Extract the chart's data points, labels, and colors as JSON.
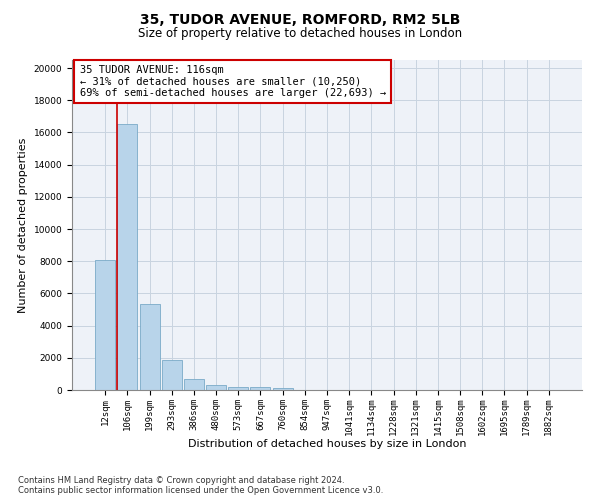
{
  "title": "35, TUDOR AVENUE, ROMFORD, RM2 5LB",
  "subtitle": "Size of property relative to detached houses in London",
  "xlabel": "Distribution of detached houses by size in London",
  "ylabel": "Number of detached properties",
  "bar_color": "#b8d4ea",
  "bar_edge_color": "#7aaac8",
  "annotation_box_color": "#cc0000",
  "vline_color": "#cc0000",
  "grid_color": "#c8d4e0",
  "background_color": "#eef2f8",
  "categories": [
    "12sqm",
    "106sqm",
    "199sqm",
    "293sqm",
    "386sqm",
    "480sqm",
    "573sqm",
    "667sqm",
    "760sqm",
    "854sqm",
    "947sqm",
    "1041sqm",
    "1134sqm",
    "1228sqm",
    "1321sqm",
    "1415sqm",
    "1508sqm",
    "1602sqm",
    "1695sqm",
    "1789sqm",
    "1882sqm"
  ],
  "bar_heights": [
    8050,
    16500,
    5350,
    1850,
    700,
    320,
    200,
    170,
    130,
    0,
    0,
    0,
    0,
    0,
    0,
    0,
    0,
    0,
    0,
    0,
    0
  ],
  "ylim": [
    0,
    20500
  ],
  "yticks": [
    0,
    2000,
    4000,
    6000,
    8000,
    10000,
    12000,
    14000,
    16000,
    18000,
    20000
  ],
  "annotation_title": "35 TUDOR AVENUE: 116sqm",
  "annotation_line1": "← 31% of detached houses are smaller (10,250)",
  "annotation_line2": "69% of semi-detached houses are larger (22,693) →",
  "footer_line1": "Contains HM Land Registry data © Crown copyright and database right 2024.",
  "footer_line2": "Contains public sector information licensed under the Open Government Licence v3.0.",
  "title_fontsize": 10,
  "subtitle_fontsize": 8.5,
  "xlabel_fontsize": 8,
  "ylabel_fontsize": 8,
  "tick_fontsize": 6.5,
  "annotation_fontsize": 7.5,
  "footer_fontsize": 6
}
